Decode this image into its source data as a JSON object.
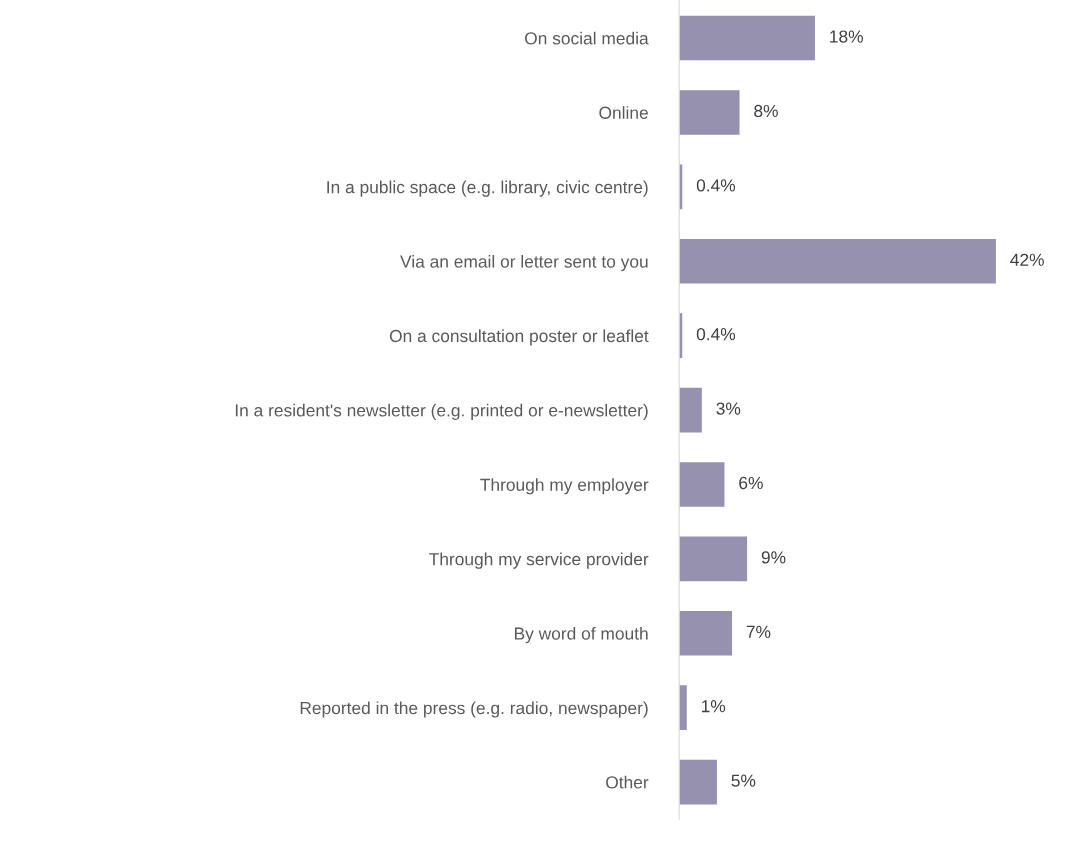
{
  "chart_data": {
    "type": "bar",
    "orientation": "horizontal",
    "categories": [
      "On social media",
      "Online",
      "In a public space (e.g. library, civic centre)",
      "Via an email or letter sent to you",
      "On a consultation poster or leaflet",
      "In a resident's newsletter (e.g. printed or e-newsletter)",
      "Through my employer",
      "Through my service provider",
      "By word of mouth",
      "Reported in the press (e.g. radio, newspaper)",
      "Other"
    ],
    "values": [
      18,
      8,
      0.4,
      42,
      0.4,
      3,
      6,
      9,
      7,
      1,
      5
    ],
    "value_labels": [
      "18%",
      "8%",
      "0.4%",
      "42%",
      "0.4%",
      "3%",
      "6%",
      "9%",
      "7%",
      "1%",
      "5%"
    ],
    "color": "#9591ae",
    "grid": false,
    "legend": false
  }
}
